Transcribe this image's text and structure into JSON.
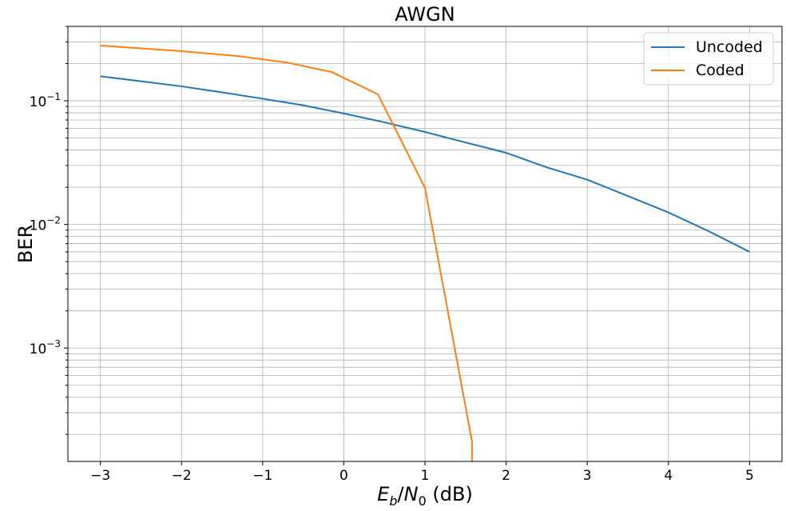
{
  "chart_data": {
    "type": "line",
    "title": "AWGN",
    "xlabel": "E_b/N_0 (dB)",
    "xlabel_parts": {
      "base1": "E",
      "sub1": "b",
      "slash": "/",
      "base2": "N",
      "sub2": "0",
      "unit": " (dB)"
    },
    "ylabel": "BER",
    "yscale": "log",
    "xlim": [
      -3.4,
      5.4
    ],
    "ylim": [
      0.000121,
      0.4
    ],
    "grid": true,
    "grid_minor": true,
    "legend_placement": "top-right",
    "x_ticks": [
      -3,
      -2,
      -1,
      0,
      1,
      2,
      3,
      4,
      5
    ],
    "x_tick_labels": [
      "−3",
      "−2",
      "−1",
      "0",
      "1",
      "2",
      "3",
      "4",
      "5"
    ],
    "y_ticks": [
      0.001,
      0.01,
      0.1
    ],
    "y_tick_labels": [
      {
        "base": "10",
        "exp": "−3"
      },
      {
        "base": "10",
        "exp": "−2"
      },
      {
        "base": "10",
        "exp": "−1"
      }
    ],
    "series": [
      {
        "name": "Uncoded",
        "color": "#1f77b4",
        "x": [
          -3,
          -2.5,
          -2,
          -1.5,
          -1,
          -0.5,
          0,
          0.5,
          1,
          1.5,
          2,
          2.5,
          3,
          3.5,
          4,
          4.5,
          5
        ],
        "y": [
          0.158,
          0.144,
          0.131,
          0.117,
          0.104,
          0.092,
          0.079,
          0.067,
          0.056,
          0.046,
          0.038,
          0.029,
          0.023,
          0.017,
          0.0125,
          0.0088,
          0.006
        ]
      },
      {
        "name": "Coded",
        "color": "#ff7f0e",
        "x": [
          -3,
          -2,
          -1.3,
          -0.7,
          -0.15,
          0.42,
          1.0,
          1.58,
          1.58
        ],
        "y": [
          0.28,
          0.252,
          0.23,
          0.204,
          0.171,
          0.113,
          0.0198,
          0.000175,
          0.000121
        ]
      }
    ]
  }
}
